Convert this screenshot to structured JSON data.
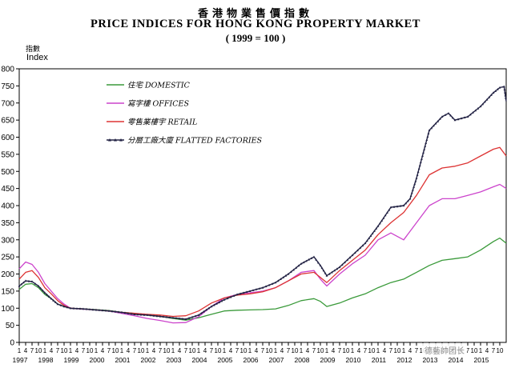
{
  "header": {
    "title_zh": "香港物業售價指數",
    "title_en": "PRICE INDICES FOR HONG KONG PROPERTY MARKET",
    "subtitle": "( 1999 = 100 )"
  },
  "axis": {
    "ylabel_zh": "指數",
    "ylabel_en": "Index"
  },
  "watermark": "德藝帥团长",
  "chart_data": {
    "type": "line",
    "title": "PRICE INDICES FOR HONG KONG PROPERTY MARKET",
    "subtitle": "( 1999 = 100 )",
    "ylabel": "Index",
    "xlabel": "",
    "ylim": [
      0,
      800
    ],
    "yticks": [
      0,
      50,
      100,
      150,
      200,
      250,
      300,
      350,
      400,
      450,
      500,
      550,
      600,
      650,
      700,
      750,
      800
    ],
    "xlim": [
      1997.0,
      2016.0
    ],
    "x_year_labels": [
      "1997",
      "1998",
      "1999",
      "2000",
      "2001",
      "2002",
      "2003",
      "2004",
      "2005",
      "2006",
      "2007",
      "2008",
      "2009",
      "2010",
      "2011",
      "2012",
      "2013",
      "2014",
      "2015"
    ],
    "x_month_ticks": [
      "1",
      "4",
      "7",
      "10"
    ],
    "grid": false,
    "legend_position": "top-left",
    "series": [
      {
        "name": "住宅 DOMESTIC",
        "color": "#3a9a3a",
        "marker": "none",
        "x": [
          1997.0,
          1997.25,
          1997.5,
          1997.75,
          1998.0,
          1998.25,
          1998.5,
          1998.75,
          1999.0,
          1999.5,
          2000.0,
          2000.5,
          2001.0,
          2001.5,
          2002.0,
          2002.5,
          2003.0,
          2003.5,
          2004.0,
          2004.5,
          2005.0,
          2005.5,
          2006.0,
          2006.5,
          2007.0,
          2007.5,
          2008.0,
          2008.5,
          2008.75,
          2009.0,
          2009.5,
          2010.0,
          2010.5,
          2011.0,
          2011.5,
          2012.0,
          2012.5,
          2013.0,
          2013.5,
          2014.0,
          2014.5,
          2015.0,
          2015.5,
          2015.75,
          2016.0
        ],
        "y": [
          155,
          170,
          172,
          160,
          140,
          128,
          112,
          105,
          100,
          98,
          96,
          93,
          88,
          85,
          80,
          76,
          70,
          65,
          72,
          82,
          92,
          94,
          95,
          96,
          98,
          108,
          122,
          128,
          120,
          105,
          115,
          130,
          142,
          160,
          175,
          185,
          205,
          225,
          240,
          245,
          250,
          270,
          295,
          305,
          290
        ]
      },
      {
        "name": "寫字樓 OFFICES",
        "color": "#cc44cc",
        "marker": "none",
        "x": [
          1997.0,
          1997.25,
          1997.5,
          1997.75,
          1998.0,
          1998.25,
          1998.5,
          1998.75,
          1999.0,
          1999.5,
          2000.0,
          2000.5,
          2001.0,
          2001.5,
          2002.0,
          2002.5,
          2003.0,
          2003.5,
          2004.0,
          2004.5,
          2005.0,
          2005.5,
          2006.0,
          2006.5,
          2007.0,
          2007.5,
          2008.0,
          2008.5,
          2008.75,
          2009.0,
          2009.5,
          2010.0,
          2010.5,
          2011.0,
          2011.5,
          2012.0,
          2012.5,
          2013.0,
          2013.5,
          2014.0,
          2014.5,
          2015.0,
          2015.5,
          2015.75,
          2016.0
        ],
        "y": [
          215,
          235,
          228,
          205,
          172,
          150,
          128,
          112,
          100,
          97,
          95,
          92,
          85,
          78,
          70,
          64,
          57,
          58,
          75,
          105,
          130,
          140,
          145,
          150,
          160,
          180,
          205,
          210,
          185,
          165,
          200,
          230,
          255,
          300,
          320,
          300,
          350,
          400,
          420,
          420,
          430,
          440,
          455,
          462,
          450
        ]
      },
      {
        "name": "零售業樓宇 RETAIL",
        "color": "#dd3333",
        "marker": "none",
        "x": [
          1997.0,
          1997.25,
          1997.5,
          1997.75,
          1998.0,
          1998.25,
          1998.5,
          1998.75,
          1999.0,
          1999.5,
          2000.0,
          2000.5,
          2001.0,
          2001.5,
          2002.0,
          2002.5,
          2003.0,
          2003.5,
          2004.0,
          2004.5,
          2005.0,
          2005.5,
          2006.0,
          2006.5,
          2007.0,
          2007.5,
          2008.0,
          2008.5,
          2008.75,
          2009.0,
          2009.5,
          2010.0,
          2010.5,
          2011.0,
          2011.5,
          2012.0,
          2012.5,
          2013.0,
          2013.5,
          2014.0,
          2014.5,
          2015.0,
          2015.5,
          2015.75,
          2016.0
        ],
        "y": [
          185,
          205,
          210,
          190,
          160,
          142,
          122,
          108,
          100,
          98,
          95,
          92,
          88,
          85,
          82,
          80,
          76,
          78,
          92,
          115,
          130,
          138,
          142,
          148,
          160,
          180,
          200,
          205,
          190,
          175,
          210,
          240,
          270,
          315,
          350,
          380,
          430,
          490,
          510,
          515,
          525,
          545,
          565,
          570,
          545
        ]
      },
      {
        "name": "分層工廠大廈 FLATTED FACTORIES",
        "color": "#222244",
        "marker": "triangle",
        "x": [
          1997.0,
          1997.25,
          1997.5,
          1997.75,
          1998.0,
          1998.25,
          1998.5,
          1998.75,
          1999.0,
          1999.5,
          2000.0,
          2000.5,
          2001.0,
          2001.5,
          2002.0,
          2002.5,
          2003.0,
          2003.5,
          2004.0,
          2004.5,
          2005.0,
          2005.5,
          2006.0,
          2006.5,
          2007.0,
          2007.5,
          2008.0,
          2008.5,
          2008.75,
          2009.0,
          2009.5,
          2010.0,
          2010.5,
          2011.0,
          2011.5,
          2012.0,
          2012.25,
          2012.5,
          2013.0,
          2013.5,
          2013.75,
          2014.0,
          2014.5,
          2015.0,
          2015.5,
          2015.75,
          2015.92,
          2016.0
        ],
        "y": [
          165,
          180,
          178,
          165,
          145,
          128,
          112,
          105,
          100,
          98,
          95,
          92,
          88,
          82,
          80,
          76,
          72,
          68,
          80,
          105,
          125,
          140,
          150,
          160,
          175,
          200,
          230,
          250,
          225,
          195,
          220,
          255,
          290,
          340,
          395,
          400,
          420,
          480,
          620,
          660,
          670,
          650,
          660,
          690,
          730,
          745,
          748,
          705
        ]
      }
    ]
  }
}
